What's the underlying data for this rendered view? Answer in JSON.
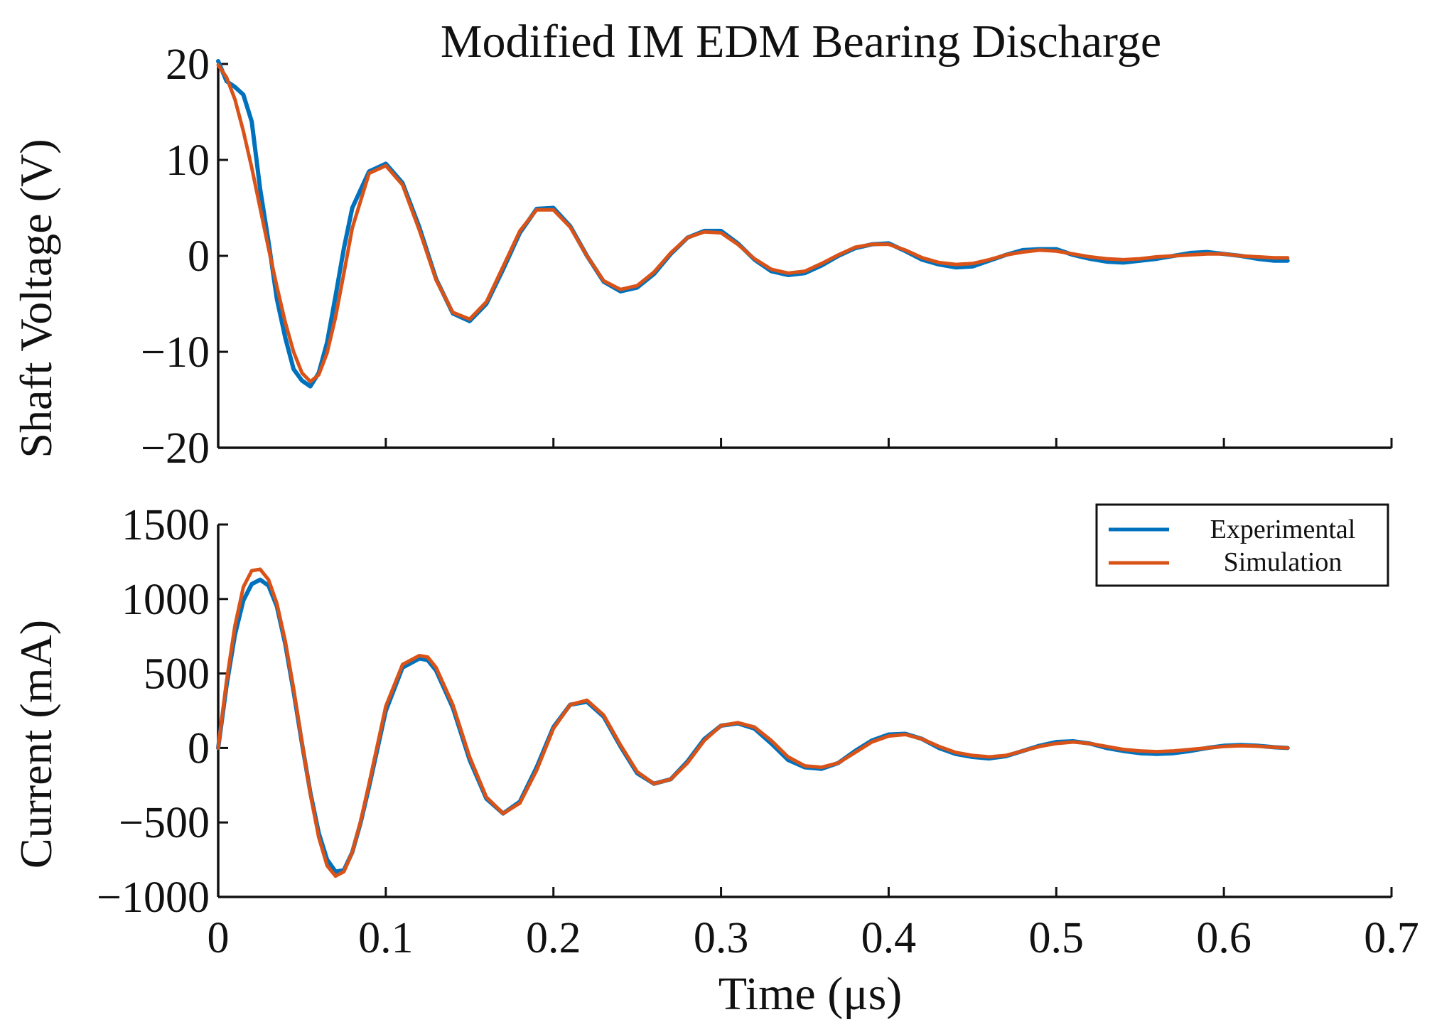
{
  "chart_data": {
    "title": "Modified IM EDM Bearing Discharge",
    "xlabel": "Time (μs)",
    "xlim": [
      0,
      0.7
    ],
    "xticks": [
      0,
      0.1,
      0.2,
      0.3,
      0.4,
      0.5,
      0.6,
      0.7
    ],
    "xtick_labels": [
      "0",
      "0.1",
      "0.2",
      "0.3",
      "0.4",
      "0.5",
      "0.6",
      "0.7"
    ],
    "legend": {
      "placement": "top-right of bottom panel",
      "entries": [
        {
          "name": "Experimental",
          "color": "#0072BD"
        },
        {
          "name": "Simulation",
          "color": "#D95319"
        }
      ]
    },
    "panels": [
      {
        "type": "line",
        "ylabel": "Shaft Voltage (V)",
        "ylim": [
          -20,
          20
        ],
        "yticks": [
          -20,
          -10,
          0,
          10,
          20
        ],
        "ytick_labels": [
          "−20",
          "−10",
          "0",
          "10",
          "20"
        ],
        "series": [
          {
            "name": "Experimental",
            "color": "#0072BD",
            "x": [
              0,
              0.005,
              0.01,
              0.015,
              0.02,
              0.025,
              0.03,
              0.035,
              0.04,
              0.045,
              0.05,
              0.055,
              0.06,
              0.065,
              0.07,
              0.075,
              0.08,
              0.09,
              0.1,
              0.11,
              0.12,
              0.13,
              0.14,
              0.15,
              0.16,
              0.17,
              0.18,
              0.19,
              0.2,
              0.21,
              0.22,
              0.23,
              0.24,
              0.25,
              0.26,
              0.27,
              0.28,
              0.29,
              0.3,
              0.31,
              0.32,
              0.33,
              0.34,
              0.35,
              0.36,
              0.37,
              0.38,
              0.39,
              0.4,
              0.41,
              0.42,
              0.43,
              0.44,
              0.45,
              0.46,
              0.47,
              0.48,
              0.49,
              0.5,
              0.51,
              0.52,
              0.53,
              0.54,
              0.55,
              0.56,
              0.57,
              0.58,
              0.59,
              0.6,
              0.61,
              0.62,
              0.63,
              0.638
            ],
            "y": [
              20.3,
              18.2,
              17.6,
              16.8,
              14.0,
              7.0,
              1.5,
              -4.5,
              -8.5,
              -11.8,
              -13.0,
              -13.6,
              -12.2,
              -9.0,
              -4.2,
              0.8,
              5.0,
              8.8,
              9.6,
              7.6,
              3.0,
              -2.4,
              -6.0,
              -6.8,
              -5.0,
              -1.4,
              2.4,
              4.9,
              5.0,
              3.1,
              0.0,
              -2.7,
              -3.7,
              -3.3,
              -1.9,
              0.2,
              1.9,
              2.6,
              2.6,
              1.3,
              -0.4,
              -1.6,
              -2.0,
              -1.8,
              -1.0,
              0.0,
              0.8,
              1.2,
              1.3,
              0.5,
              -0.4,
              -0.9,
              -1.2,
              -1.1,
              -0.5,
              0.1,
              0.6,
              0.7,
              0.7,
              0.1,
              -0.3,
              -0.6,
              -0.7,
              -0.5,
              -0.3,
              0.0,
              0.3,
              0.4,
              0.2,
              0.0,
              -0.3,
              -0.5,
              -0.5
            ]
          },
          {
            "name": "Simulation",
            "color": "#D95319",
            "x": [
              0,
              0.005,
              0.01,
              0.015,
              0.02,
              0.025,
              0.03,
              0.035,
              0.04,
              0.045,
              0.05,
              0.055,
              0.06,
              0.065,
              0.07,
              0.075,
              0.08,
              0.09,
              0.1,
              0.11,
              0.12,
              0.13,
              0.14,
              0.15,
              0.16,
              0.17,
              0.18,
              0.19,
              0.2,
              0.21,
              0.22,
              0.23,
              0.24,
              0.25,
              0.26,
              0.27,
              0.28,
              0.29,
              0.3,
              0.31,
              0.32,
              0.33,
              0.34,
              0.35,
              0.36,
              0.37,
              0.38,
              0.39,
              0.4,
              0.41,
              0.42,
              0.43,
              0.44,
              0.45,
              0.46,
              0.47,
              0.48,
              0.49,
              0.5,
              0.51,
              0.52,
              0.53,
              0.54,
              0.55,
              0.56,
              0.57,
              0.58,
              0.59,
              0.6,
              0.61,
              0.62,
              0.63,
              0.638
            ],
            "y": [
              19.9,
              18.6,
              16.3,
              13.0,
              9.2,
              5.0,
              0.8,
              -3.2,
              -6.9,
              -10.0,
              -12.2,
              -13.1,
              -12.4,
              -10.1,
              -6.4,
              -1.8,
              2.9,
              8.6,
              9.4,
              7.4,
              2.7,
              -2.5,
              -5.9,
              -6.6,
              -4.8,
              -1.1,
              2.6,
              4.8,
              4.8,
              3.0,
              0.0,
              -2.6,
              -3.5,
              -3.1,
              -1.7,
              0.3,
              1.9,
              2.5,
              2.4,
              1.2,
              -0.3,
              -1.4,
              -1.8,
              -1.6,
              -0.8,
              0.1,
              0.9,
              1.2,
              1.2,
              0.6,
              -0.2,
              -0.7,
              -0.9,
              -0.8,
              -0.4,
              0.1,
              0.4,
              0.6,
              0.5,
              0.2,
              -0.1,
              -0.3,
              -0.4,
              -0.3,
              -0.1,
              0.0,
              0.1,
              0.2,
              0.2,
              0.0,
              -0.1,
              -0.2,
              -0.2
            ]
          }
        ]
      },
      {
        "type": "line",
        "ylabel": "Current (mA)",
        "ylim": [
          -1000,
          1500
        ],
        "yticks": [
          -1000,
          -500,
          0,
          500,
          1000,
          1500
        ],
        "ytick_labels": [
          "−1000",
          "−500",
          "0",
          "500",
          "1000",
          "1500"
        ],
        "series": [
          {
            "name": "Experimental",
            "color": "#0072BD",
            "x": [
              0,
              0.005,
              0.01,
              0.015,
              0.02,
              0.025,
              0.03,
              0.035,
              0.04,
              0.045,
              0.05,
              0.055,
              0.06,
              0.065,
              0.07,
              0.075,
              0.08,
              0.085,
              0.09,
              0.1,
              0.11,
              0.12,
              0.125,
              0.13,
              0.14,
              0.15,
              0.16,
              0.17,
              0.18,
              0.19,
              0.2,
              0.21,
              0.22,
              0.23,
              0.24,
              0.25,
              0.26,
              0.27,
              0.28,
              0.29,
              0.3,
              0.31,
              0.32,
              0.33,
              0.34,
              0.35,
              0.36,
              0.37,
              0.38,
              0.39,
              0.4,
              0.41,
              0.42,
              0.43,
              0.44,
              0.45,
              0.46,
              0.47,
              0.48,
              0.49,
              0.5,
              0.51,
              0.52,
              0.53,
              0.54,
              0.55,
              0.56,
              0.57,
              0.58,
              0.59,
              0.6,
              0.61,
              0.62,
              0.63,
              0.638
            ],
            "y": [
              0,
              420,
              760,
              990,
              1100,
              1130,
              1090,
              950,
              700,
              380,
              30,
              -300,
              -570,
              -750,
              -830,
              -820,
              -700,
              -500,
              -260,
              250,
              540,
              600,
              590,
              520,
              270,
              -80,
              -340,
              -440,
              -360,
              -130,
              140,
              290,
              310,
              210,
              10,
              -170,
              -240,
              -210,
              -90,
              60,
              150,
              165,
              130,
              30,
              -80,
              -130,
              -140,
              -100,
              -20,
              50,
              90,
              95,
              60,
              0,
              -40,
              -60,
              -70,
              -55,
              -20,
              15,
              40,
              45,
              30,
              0,
              -20,
              -35,
              -40,
              -35,
              -20,
              0,
              15,
              20,
              15,
              5,
              0
            ]
          },
          {
            "name": "Simulation",
            "color": "#D95319",
            "x": [
              0,
              0.005,
              0.01,
              0.015,
              0.02,
              0.025,
              0.03,
              0.035,
              0.04,
              0.045,
              0.05,
              0.055,
              0.06,
              0.065,
              0.07,
              0.075,
              0.08,
              0.085,
              0.09,
              0.1,
              0.11,
              0.12,
              0.125,
              0.13,
              0.14,
              0.15,
              0.16,
              0.17,
              0.18,
              0.19,
              0.2,
              0.21,
              0.22,
              0.23,
              0.24,
              0.25,
              0.26,
              0.27,
              0.28,
              0.29,
              0.3,
              0.31,
              0.32,
              0.33,
              0.34,
              0.35,
              0.36,
              0.37,
              0.38,
              0.39,
              0.4,
              0.41,
              0.42,
              0.43,
              0.44,
              0.45,
              0.46,
              0.47,
              0.48,
              0.49,
              0.5,
              0.51,
              0.52,
              0.53,
              0.54,
              0.55,
              0.56,
              0.57,
              0.58,
              0.59,
              0.6,
              0.61,
              0.62,
              0.63,
              0.638
            ],
            "y": [
              0,
              450,
              820,
              1080,
              1190,
              1200,
              1130,
              970,
              720,
              400,
              40,
              -310,
              -600,
              -790,
              -860,
              -830,
              -700,
              -490,
              -240,
              280,
              560,
              620,
              610,
              540,
              290,
              -60,
              -330,
              -440,
              -370,
              -150,
              130,
              290,
              320,
              220,
              20,
              -160,
              -240,
              -210,
              -100,
              50,
              150,
              170,
              140,
              50,
              -60,
              -120,
              -130,
              -100,
              -30,
              40,
              80,
              90,
              60,
              10,
              -30,
              -50,
              -60,
              -50,
              -20,
              10,
              30,
              40,
              30,
              10,
              -10,
              -20,
              -25,
              -20,
              -10,
              0,
              10,
              15,
              12,
              5,
              0
            ]
          }
        ]
      }
    ]
  }
}
